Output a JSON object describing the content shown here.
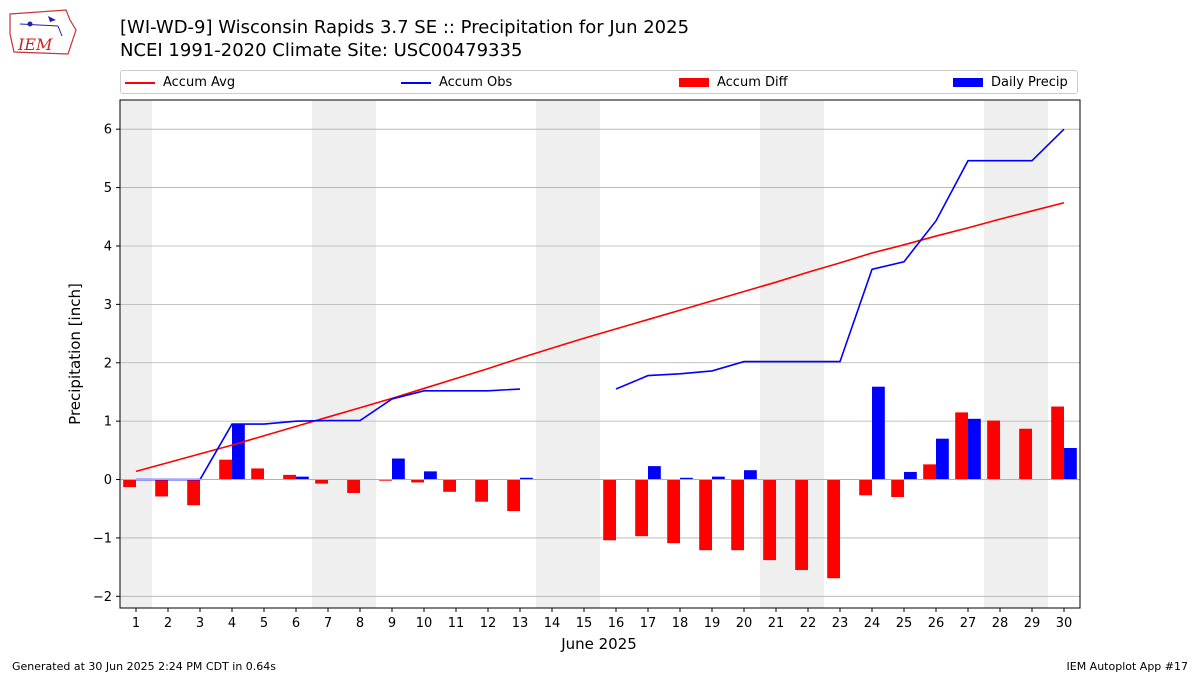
{
  "header": {
    "logo_text": "IEM",
    "title_line1": "[WI-WD-9] Wisconsin Rapids 3.7 SE :: Precipitation for Jun 2025",
    "title_line2": "NCEI 1991-2020 Climate Site: USC00479335"
  },
  "legend": {
    "items": [
      {
        "label": "Accum Avg",
        "kind": "line",
        "color": "#ff0000"
      },
      {
        "label": "Accum Obs",
        "kind": "line",
        "color": "#0000ff"
      },
      {
        "label": "Accum Diff",
        "kind": "box",
        "color": "#ff0000"
      },
      {
        "label": "Daily Precip",
        "kind": "box",
        "color": "#0000ff"
      }
    ]
  },
  "chart_data": {
    "type": "bar",
    "xlabel": "June 2025",
    "ylabel": "Precipitation [inch]",
    "ylim": [
      -2.2,
      6.5
    ],
    "yticks": [
      -2,
      -1,
      0,
      1,
      2,
      3,
      4,
      5,
      6
    ],
    "days": [
      1,
      2,
      3,
      4,
      5,
      6,
      7,
      8,
      9,
      10,
      11,
      12,
      13,
      14,
      15,
      16,
      17,
      18,
      19,
      20,
      21,
      22,
      23,
      24,
      25,
      26,
      27,
      28,
      29,
      30
    ],
    "weekend_days": [
      1,
      7,
      8,
      14,
      15,
      21,
      22,
      28,
      29
    ],
    "grid": true,
    "colors": {
      "avg": "#ff0000",
      "obs": "#0000ff",
      "diff": "#ff0000",
      "daily": "#0000ff",
      "weekend": "#efefef",
      "grid": "#b0b0b0"
    },
    "series": [
      {
        "name": "Accum Avg",
        "kind": "line",
        "values": [
          0.14,
          0.29,
          0.44,
          0.59,
          0.75,
          0.91,
          1.07,
          1.23,
          1.39,
          1.56,
          1.73,
          1.9,
          2.08,
          2.25,
          2.42,
          2.58,
          2.74,
          2.9,
          3.06,
          3.22,
          3.38,
          3.55,
          3.71,
          3.88,
          4.02,
          4.17,
          4.31,
          4.46,
          4.6,
          4.74
        ]
      },
      {
        "name": "Accum Obs",
        "kind": "line",
        "values": [
          0.0,
          0.0,
          0.0,
          0.95,
          0.95,
          1.0,
          1.01,
          1.01,
          1.38,
          1.52,
          1.52,
          1.52,
          1.55,
          null,
          null,
          1.55,
          1.78,
          1.81,
          1.86,
          2.02,
          2.02,
          2.02,
          2.02,
          3.6,
          3.73,
          4.43,
          5.46,
          5.46,
          5.46,
          6.0
        ]
      },
      {
        "name": "Accum Diff",
        "kind": "bar",
        "values": [
          -0.13,
          -0.29,
          -0.44,
          0.34,
          0.19,
          0.08,
          -0.07,
          -0.23,
          -0.02,
          -0.05,
          -0.21,
          -0.38,
          -0.54,
          null,
          null,
          -1.04,
          -0.97,
          -1.09,
          -1.21,
          -1.21,
          -1.38,
          -1.55,
          -1.69,
          -0.27,
          -0.3,
          0.26,
          1.15,
          1.01,
          0.87,
          1.25
        ]
      },
      {
        "name": "Daily Precip",
        "kind": "bar",
        "values": [
          0.0,
          0.0,
          0.0,
          0.95,
          0.0,
          0.05,
          0.0,
          0.0,
          0.36,
          0.14,
          0.0,
          0.0,
          0.03,
          null,
          null,
          0.0,
          0.23,
          0.03,
          0.05,
          0.16,
          0.0,
          0.0,
          0.0,
          1.59,
          0.13,
          0.7,
          1.04,
          0.0,
          0.0,
          0.54
        ]
      }
    ]
  },
  "footer": {
    "generated": "Generated at 30 Jun 2025 2:24 PM CDT in 0.64s",
    "app": "IEM Autoplot App #17"
  }
}
